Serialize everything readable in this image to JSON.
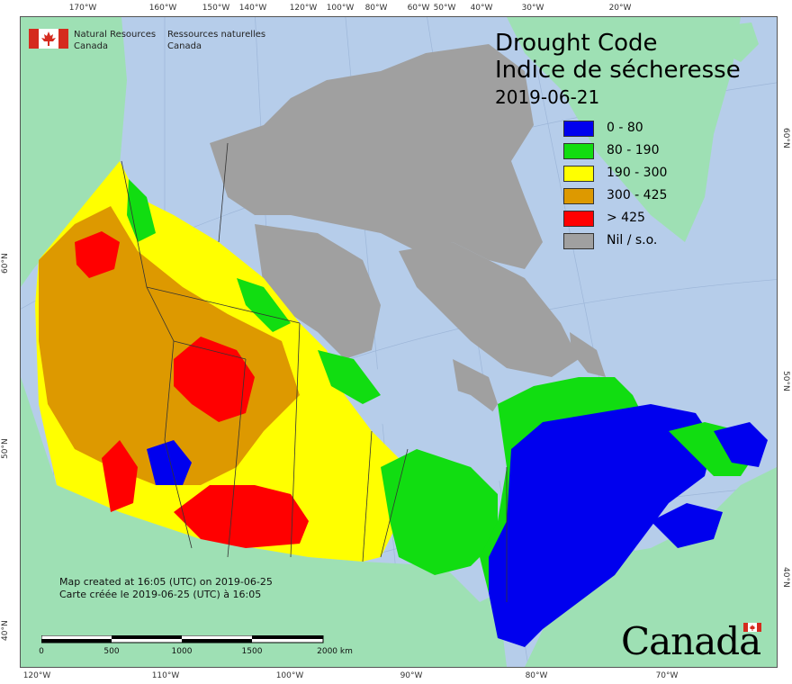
{
  "agency": {
    "name_en": "Natural Resources",
    "name_en_2": "Canada",
    "name_fr": "Ressources naturelles",
    "name_fr_2": "Canada"
  },
  "title": {
    "line1": "Drought Code",
    "line2": "Indice de sécheresse",
    "date": "2019-06-21"
  },
  "legend": [
    {
      "label": "0 - 80",
      "color": "#0000ee"
    },
    {
      "label": "80 - 190",
      "color": "#11dd11"
    },
    {
      "label": "190 - 300",
      "color": "#ffff00"
    },
    {
      "label": "300 - 425",
      "color": "#dd9900"
    },
    {
      "label": "> 425",
      "color": "#ff0000"
    },
    {
      "label": "Nil / s.o.",
      "color": "#a0a0a0"
    }
  ],
  "credits": {
    "en": "Map created at 16:05 (UTC) on 2019-06-25",
    "fr": "Carte créée le 2019-06-25 (UTC) à 16:05"
  },
  "scale": {
    "labels": [
      "0",
      "500",
      "1000",
      "1500",
      "2000 km"
    ]
  },
  "graticule": {
    "top": [
      "170°W",
      "160°W",
      "150°W",
      "140°W",
      "120°W",
      "100°W",
      "80°W",
      "60°W",
      "50°W",
      "40°W",
      "30°W",
      "20°W"
    ],
    "bottom": [
      "120°W",
      "110°W",
      "100°W",
      "90°W",
      "80°W",
      "70°W"
    ],
    "left": [
      "60°N",
      "50°N",
      "40°N"
    ],
    "right": [
      "60°N",
      "50°N",
      "40°N"
    ]
  },
  "wordmark": "Canada",
  "colors": {
    "water": "#b6cdea",
    "foreign_land": "#9ee0b4",
    "nil": "#a0a0a0"
  }
}
